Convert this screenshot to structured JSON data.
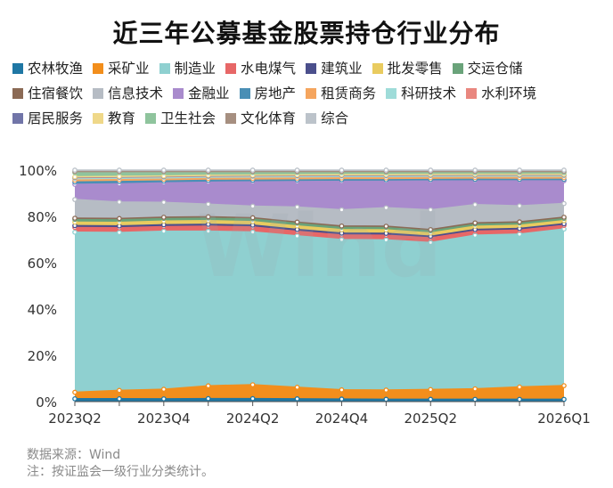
{
  "chart_data": {
    "type": "area",
    "stacked": true,
    "normalized": true,
    "title": "近三年公募基金股票持仓行业分布",
    "x": [
      "2023Q2",
      "2023Q3",
      "2023Q4",
      "2024Q1",
      "2024Q2",
      "2024Q3",
      "2024Q4",
      "2025Q1",
      "2025Q2",
      "2025Q3",
      "2025Q4",
      "2026Q1"
    ],
    "x_tick_labels": [
      "2023Q2",
      "",
      "2023Q4",
      "",
      "2024Q2",
      "",
      "2024Q4",
      "",
      "2025Q2",
      "",
      "",
      "2026Q1"
    ],
    "y_ticks": [
      "0%",
      "20%",
      "40%",
      "60%",
      "80%",
      "100%"
    ],
    "ylim": [
      0,
      100
    ],
    "grid": false,
    "legend_position": "top",
    "series": [
      {
        "name": "农林牧渔",
        "color": "#1f77a4",
        "values": [
          1.2,
          1.2,
          1.2,
          1.3,
          1.3,
          1.2,
          1.1,
          1.0,
          1.0,
          1.0,
          1.0,
          1.0
        ]
      },
      {
        "name": "采矿业",
        "color": "#f28e1c",
        "values": [
          2.8,
          3.6,
          4.2,
          5.6,
          6.0,
          5.0,
          4.0,
          4.0,
          4.2,
          4.6,
          5.4,
          6.0
        ]
      },
      {
        "name": "制造业",
        "color": "#8fd0d0",
        "values": [
          68.5,
          67.5,
          69.0,
          67.5,
          66.0,
          65.5,
          65.0,
          65.0,
          63.5,
          67.5,
          67.0,
          68.8
        ]
      },
      {
        "name": "水电煤气",
        "color": "#e76767",
        "values": [
          2.0,
          2.0,
          2.0,
          2.2,
          2.2,
          2.0,
          2.0,
          2.0,
          2.0,
          1.8,
          1.8,
          1.6
        ]
      },
      {
        "name": "建筑业",
        "color": "#4b4f8c",
        "values": [
          0.8,
          0.8,
          0.8,
          0.8,
          0.8,
          0.8,
          0.8,
          0.8,
          0.7,
          0.7,
          0.7,
          0.7
        ]
      },
      {
        "name": "批发零售",
        "color": "#e9cb5f",
        "values": [
          1.5,
          1.5,
          1.6,
          1.6,
          1.5,
          1.5,
          1.5,
          1.5,
          1.4,
          1.4,
          1.4,
          1.4
        ]
      },
      {
        "name": "交运仓储",
        "color": "#6aa37a",
        "values": [
          1.2,
          1.2,
          1.2,
          1.2,
          1.2,
          1.2,
          1.1,
          1.1,
          1.0,
          1.0,
          1.0,
          1.0
        ]
      },
      {
        "name": "住宿餐饮",
        "color": "#8b6a55",
        "values": [
          0.5,
          0.5,
          0.5,
          0.5,
          0.5,
          0.5,
          0.5,
          0.5,
          0.5,
          0.5,
          0.5,
          0.5
        ]
      },
      {
        "name": "信息技术",
        "color": "#b6bcc4",
        "values": [
          8.0,
          7.0,
          6.5,
          5.5,
          5.0,
          6.5,
          7.0,
          8.0,
          8.5,
          8.0,
          7.0,
          6.0
        ]
      },
      {
        "name": "金融业",
        "color": "#a98bcd",
        "values": [
          6.5,
          7.8,
          8.5,
          9.6,
          10.5,
          11.0,
          12.3,
          11.5,
          12.5,
          10.5,
          11.0,
          10.0
        ]
      },
      {
        "name": "房地产",
        "color": "#4a8fb5",
        "values": [
          1.0,
          1.0,
          0.8,
          0.8,
          0.7,
          0.7,
          0.7,
          0.6,
          0.6,
          0.6,
          0.6,
          0.6
        ]
      },
      {
        "name": "租赁商务",
        "color": "#f5a55e",
        "values": [
          0.8,
          0.8,
          0.8,
          0.8,
          0.8,
          0.8,
          0.8,
          0.8,
          0.8,
          0.8,
          0.8,
          0.8
        ]
      },
      {
        "name": "科研技术",
        "color": "#9fdcd9",
        "values": [
          0.8,
          0.8,
          0.8,
          0.8,
          0.8,
          0.8,
          0.8,
          0.8,
          0.8,
          0.8,
          0.8,
          0.8
        ]
      },
      {
        "name": "水利环境",
        "color": "#e9877f",
        "values": [
          0.3,
          0.3,
          0.3,
          0.3,
          0.3,
          0.3,
          0.3,
          0.3,
          0.3,
          0.3,
          0.3,
          0.3
        ]
      },
      {
        "name": "居民服务",
        "color": "#7175a8",
        "values": [
          0.1,
          0.1,
          0.1,
          0.1,
          0.1,
          0.1,
          0.1,
          0.1,
          0.1,
          0.1,
          0.1,
          0.1
        ]
      },
      {
        "name": "教育",
        "color": "#efd889",
        "values": [
          0.2,
          0.2,
          0.2,
          0.2,
          0.2,
          0.2,
          0.2,
          0.2,
          0.2,
          0.2,
          0.2,
          0.2
        ]
      },
      {
        "name": "卫生社会",
        "color": "#8fc49d",
        "values": [
          1.8,
          1.6,
          1.5,
          1.2,
          1.1,
          1.0,
          0.9,
          0.9,
          0.8,
          0.8,
          0.8,
          0.8
        ]
      },
      {
        "name": "文化体育",
        "color": "#a68f80",
        "values": [
          0.5,
          0.5,
          0.5,
          0.5,
          0.5,
          0.5,
          0.5,
          0.5,
          0.5,
          0.5,
          0.5,
          0.5
        ]
      },
      {
        "name": "综合",
        "color": "#bcc3ca",
        "values": [
          0.6,
          0.6,
          0.6,
          0.6,
          0.6,
          0.6,
          0.6,
          0.6,
          0.6,
          0.6,
          0.6,
          0.6
        ]
      }
    ]
  },
  "watermark": "Wind",
  "footer": {
    "source": "数据来源：Wind",
    "note": "注：按证监会一级行业分类统计。"
  }
}
